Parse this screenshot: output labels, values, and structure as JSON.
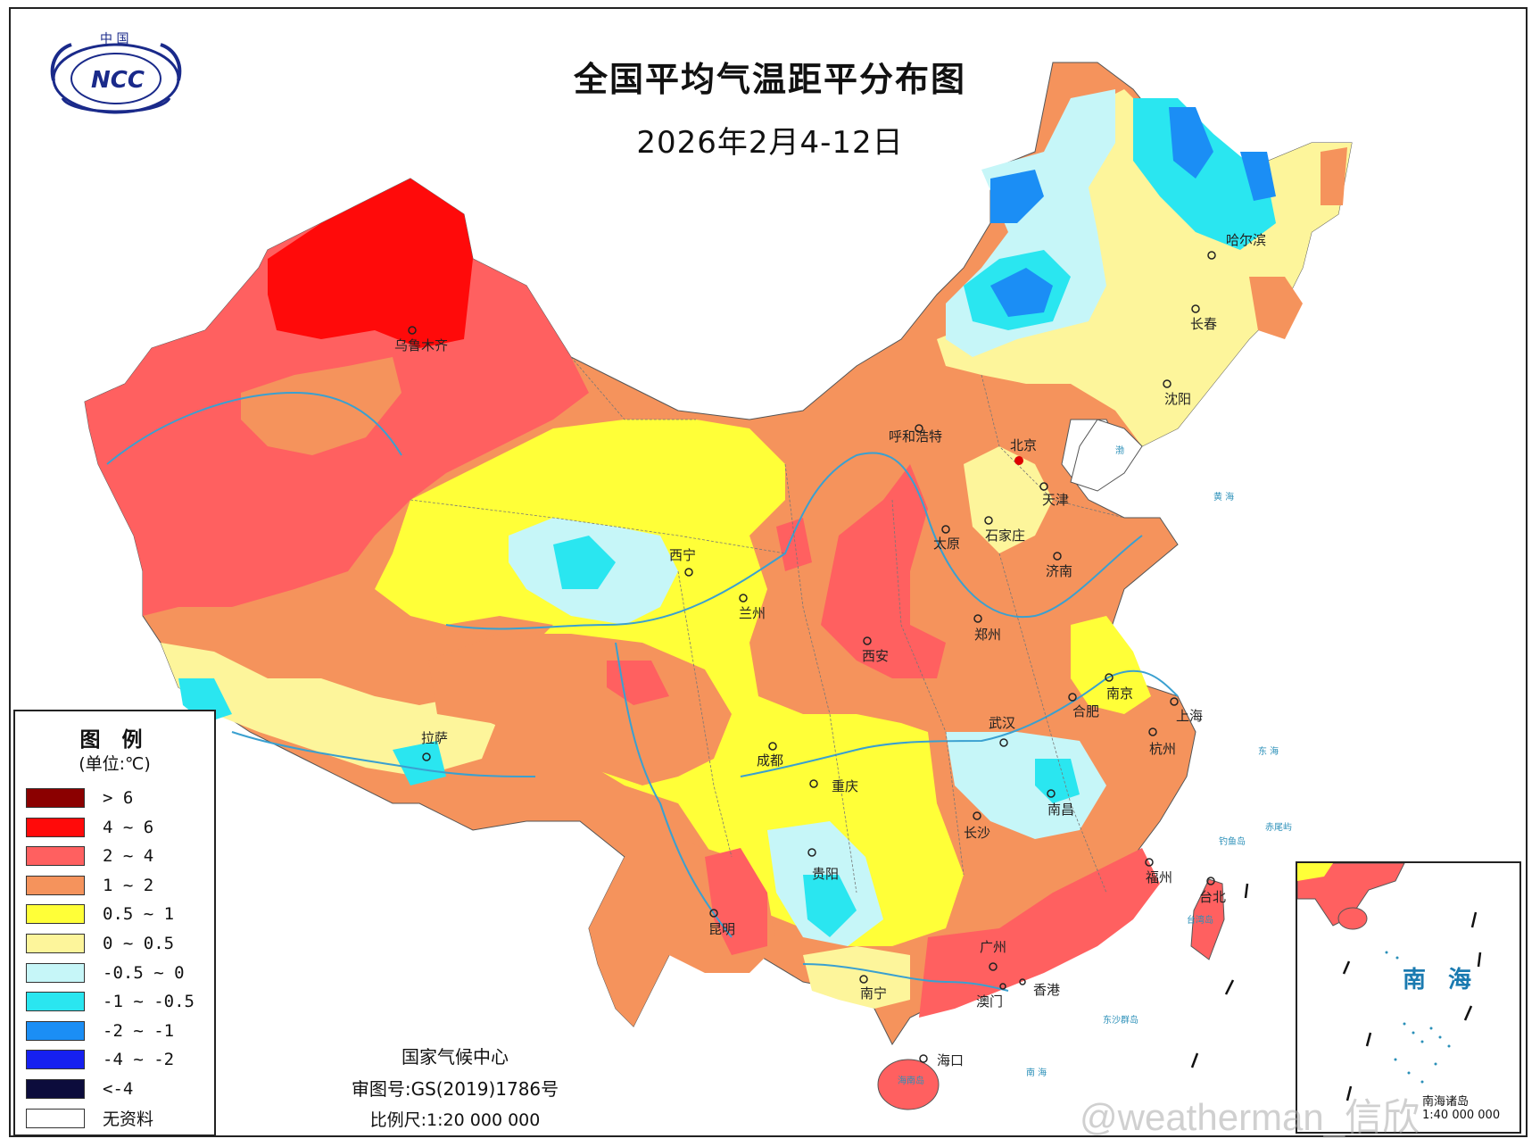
{
  "header": {
    "title": "全国平均气温距平分布图",
    "date_range": "2026年2月4-12日"
  },
  "logo": {
    "text": "NCC",
    "top_text": "中 国"
  },
  "legend": {
    "title": "图 例",
    "unit": "(单位:℃)",
    "items": [
      {
        "label": "> 6",
        "color": "#8b0000"
      },
      {
        "label": "4 ~ 6",
        "color": "#ff0a0a"
      },
      {
        "label": "2 ~ 4",
        "color": "#ff6060"
      },
      {
        "label": "1 ~ 2",
        "color": "#f5935c"
      },
      {
        "label": "0.5 ~ 1",
        "color": "#ffff38"
      },
      {
        "label": "0 ~ 0.5",
        "color": "#fdf59b"
      },
      {
        "label": "-0.5 ~ 0",
        "color": "#c6f6f8"
      },
      {
        "label": "-1 ~ -0.5",
        "color": "#2ae6f0"
      },
      {
        "label": "-2 ~ -1",
        "color": "#1b8ef5"
      },
      {
        "label": "-4 ~ -2",
        "color": "#1620f0"
      },
      {
        "label": "<-4",
        "color": "#0c0c3c"
      },
      {
        "label": "无资料",
        "color": "#ffffff"
      }
    ]
  },
  "credits": {
    "org": "国家气候中心",
    "approval": "审图号:GS(2019)1786号",
    "scale": "比例尺:1:20 000 000"
  },
  "cities": [
    {
      "name": "乌鲁木齐"
    },
    {
      "name": "呼和浩特"
    },
    {
      "name": "北京"
    },
    {
      "name": "天津"
    },
    {
      "name": "石家庄"
    },
    {
      "name": "太原"
    },
    {
      "name": "济南"
    },
    {
      "name": "郑州"
    },
    {
      "name": "西安"
    },
    {
      "name": "西宁"
    },
    {
      "name": "兰州"
    },
    {
      "name": "拉萨"
    },
    {
      "name": "成都"
    },
    {
      "name": "重庆"
    },
    {
      "name": "贵阳"
    },
    {
      "name": "昆明"
    },
    {
      "name": "南宁"
    },
    {
      "name": "广州"
    },
    {
      "name": "澳门"
    },
    {
      "name": "香港"
    },
    {
      "name": "海口"
    },
    {
      "name": "长沙"
    },
    {
      "name": "武汉"
    },
    {
      "name": "南昌"
    },
    {
      "name": "合肥"
    },
    {
      "name": "南京"
    },
    {
      "name": "上海"
    },
    {
      "name": "杭州"
    },
    {
      "name": "福州"
    },
    {
      "name": "台北"
    },
    {
      "name": "沈阳"
    },
    {
      "name": "长春"
    },
    {
      "name": "哈尔滨"
    }
  ],
  "small_labels": {
    "hainan": "海南岛",
    "taiwan": "台湾岛",
    "diaoyu": "钓鱼岛",
    "chiwei": "赤尾屿",
    "dongsha": "东沙群岛",
    "sea_east": "东    海",
    "sea_yellow": "黄 海",
    "sea_bohai": "渤",
    "sea_south": "南    海"
  },
  "inset": {
    "label": "南 海",
    "footer": "南海诸岛",
    "scale": "1:40 000 000"
  },
  "watermark": "@weatherman_信欣"
}
